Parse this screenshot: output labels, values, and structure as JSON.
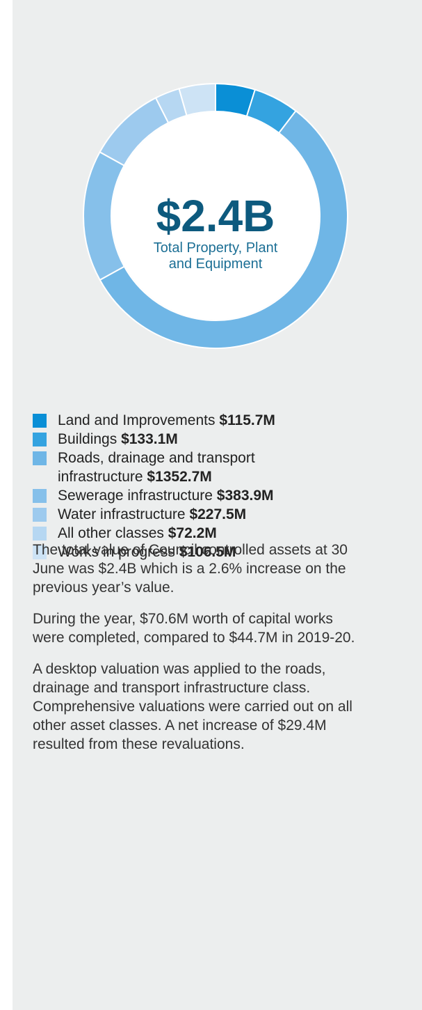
{
  "chart_data": {
    "type": "donut",
    "center_value": "$2.4B",
    "center_label": "Total Property, Plant and Equipment",
    "categories": [
      "Land and Improvements",
      "Buildings",
      "Roads, drainage and transport infrastructure",
      "Sewerage infrastructure",
      "Water infrastructure",
      "All other classes",
      "Works in progress"
    ],
    "values": [
      115.7,
      133.1,
      1352.7,
      383.9,
      227.5,
      72.2,
      106.5
    ],
    "value_labels": [
      "$115.7M",
      "$133.1M",
      "$1352.7M",
      "$383.9M",
      "$227.5M",
      "$72.2M",
      "$106.5M"
    ],
    "colors": [
      "#0a8fd6",
      "#34a3e0",
      "#6fb6e6",
      "#86c0ea",
      "#9dcaee",
      "#b6d7f2",
      "#cde3f5"
    ]
  },
  "paragraphs": [
    "The total value of Council controlled assets at 30 June was $2.4B which is a 2.6% increase on the previous year’s value.",
    "During the year, $70.6M worth of capital works were completed, compared to $44.7M in 2019-20.",
    "A desktop valuation was applied to the roads, drainage and transport infrastructure class. Comprehensive valuations were carried out on all other asset classes. A net increase of $29.4M resulted from these revaluations."
  ]
}
